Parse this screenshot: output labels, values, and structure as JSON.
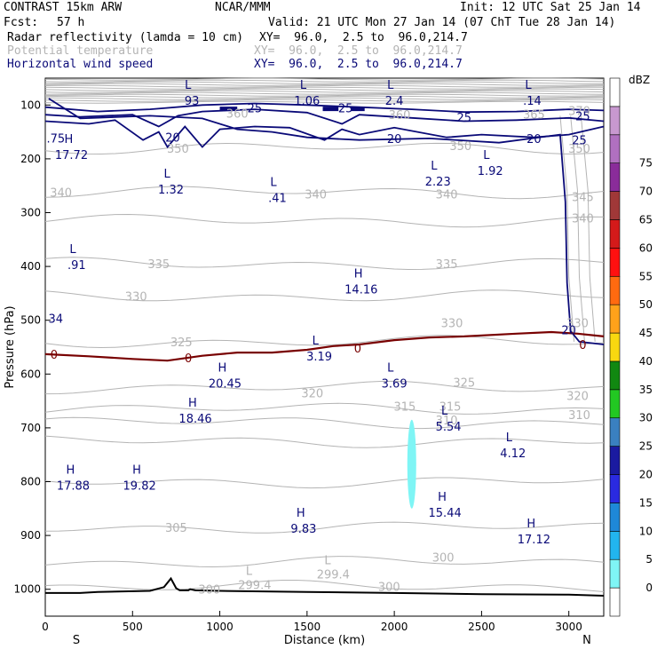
{
  "header": {
    "model": "CONTRAST 15km ARW",
    "org": "NCAR/MMM",
    "init": "Init: 12 UTC Sat 25 Jan 14",
    "fcst_label": "Fcst:",
    "fcst_value": "57 h",
    "valid": "Valid: 21 UTC Mon 27 Jan 14 (07 ChT Tue 28 Jan 14)",
    "fields": [
      {
        "name": "Radar reflectivity (lamda = 10 cm)",
        "xy": "XY=  96.0,  2.5 to  96.0,214.7"
      },
      {
        "name": "Potential temperature",
        "xy": "XY=  96.0,  2.5 to  96.0,214.7"
      },
      {
        "name": "Horizontal wind speed",
        "xy": "XY=  96.0,  2.5 to  96.0,214.7"
      }
    ]
  },
  "colors": {
    "wind": "#0a0a78",
    "theta": "#b4b4b4",
    "zero_line": "#780000",
    "terrain": "#000000",
    "refl_blob": "#7ff5f5"
  },
  "chart_data": {
    "type": "cross-section",
    "xlabel": "Distance (km)",
    "ylabel": "Pressure (hPa)",
    "xlim": [
      0,
      3200
    ],
    "ylim": [
      1050,
      50
    ],
    "x_ticks": [
      "0",
      "500",
      "1000",
      "1500",
      "2000",
      "2500",
      "3000"
    ],
    "y_ticks": [
      "100",
      "200",
      "300",
      "400",
      "500",
      "600",
      "700",
      "800",
      "900",
      "1000"
    ],
    "end_labels": {
      "left": "S",
      "right": "N"
    },
    "colorbar": {
      "unit": "dBZ",
      "levels": [
        "0",
        "5",
        "10",
        "15",
        "20",
        "25",
        "30",
        "35",
        "40",
        "45",
        "50",
        "55",
        "60",
        "65",
        "70",
        "75"
      ],
      "colors": [
        "#ffffff",
        "#7ff5f5",
        "#22b5ee",
        "#1e88d8",
        "#2a2ae0",
        "#1a1aa0",
        "#3a80c0",
        "#22c822",
        "#118811",
        "#f8d810",
        "#ffa21a",
        "#ff6a10",
        "#ff1010",
        "#d41a1a",
        "#a03838",
        "#8a2c9a",
        "#b070c0",
        "#c898d0",
        "#ffffff"
      ]
    },
    "theta_labels": [
      {
        "text": "350",
        "x": 760,
        "p": 180
      },
      {
        "text": "350",
        "x": 2380,
        "p": 175
      },
      {
        "text": "350",
        "x": 3060,
        "p": 180
      },
      {
        "text": "345",
        "x": 3080,
        "p": 270
      },
      {
        "text": "340",
        "x": 3080,
        "p": 310
      },
      {
        "text": "340",
        "x": 90,
        "p": 262
      },
      {
        "text": "340",
        "x": 1550,
        "p": 265
      },
      {
        "text": "340",
        "x": 2300,
        "p": 265
      },
      {
        "text": "335",
        "x": 650,
        "p": 395
      },
      {
        "text": "335",
        "x": 2300,
        "p": 395
      },
      {
        "text": "330",
        "x": 520,
        "p": 455
      },
      {
        "text": "330",
        "x": 2330,
        "p": 505
      },
      {
        "text": "330",
        "x": 3050,
        "p": 505
      },
      {
        "text": "325",
        "x": 780,
        "p": 540
      },
      {
        "text": "325",
        "x": 2400,
        "p": 615
      },
      {
        "text": "320",
        "x": 1530,
        "p": 635
      },
      {
        "text": "320",
        "x": 3050,
        "p": 640
      },
      {
        "text": "315",
        "x": 2060,
        "p": 660
      },
      {
        "text": "315",
        "x": 2320,
        "p": 660
      },
      {
        "text": "310",
        "x": 2300,
        "p": 685
      },
      {
        "text": "310",
        "x": 3060,
        "p": 675
      },
      {
        "text": "305",
        "x": 750,
        "p": 885
      },
      {
        "text": "300",
        "x": 2280,
        "p": 940
      },
      {
        "text": "300",
        "x": 1970,
        "p": 995
      },
      {
        "text": "300",
        "x": 940,
        "p": 1000
      },
      {
        "text": "360",
        "x": 2030,
        "p": 118
      },
      {
        "text": "360",
        "x": 1100,
        "p": 115
      },
      {
        "text": "365",
        "x": 2800,
        "p": 117
      },
      {
        "text": "370",
        "x": 3060,
        "p": 110
      }
    ],
    "theta_extrema": [
      {
        "kind": "L",
        "value": "299.4",
        "x": 1200,
        "p": 990
      },
      {
        "kind": "L",
        "value": "299.4",
        "x": 1650,
        "p": 970
      }
    ],
    "wind_labels": [
      {
        "text": "25",
        "x": 1200,
        "p": 105
      },
      {
        "text": "25",
        "x": 1720,
        "p": 105
      },
      {
        "text": "25",
        "x": 2400,
        "p": 123
      },
      {
        "text": "25",
        "x": 3080,
        "p": 120
      },
      {
        "text": "25",
        "x": 3060,
        "p": 165
      },
      {
        "text": "20",
        "x": 730,
        "p": 160
      },
      {
        "text": "20",
        "x": 2000,
        "p": 162
      },
      {
        "text": "20",
        "x": 2800,
        "p": 162
      },
      {
        "text": "20",
        "x": 3000,
        "p": 518
      },
      {
        "text": "0",
        "x": 1790,
        "p": 552
      },
      {
        "text": "0",
        "x": 820,
        "p": 570
      },
      {
        "text": "0",
        "x": 50,
        "p": 563
      },
      {
        "text": "0",
        "x": 3080,
        "p": 545
      }
    ],
    "wind_extrema": [
      {
        "kind": "L",
        "value": "93",
        "x": 840,
        "p": 90
      },
      {
        "kind": "L",
        "value": "1.06",
        "x": 1500,
        "p": 90
      },
      {
        "kind": "L",
        "value": "2.4",
        "x": 2000,
        "p": 90
      },
      {
        "kind": "L",
        "value": ".14",
        "x": 2790,
        "p": 90
      },
      {
        "kind": "",
        "value": ".75",
        "x": 60,
        "p": 160
      },
      {
        "kind": "H",
        "value": "17.72",
        "x": 150,
        "p": 190
      },
      {
        "kind": "L",
        "value": "1.32",
        "x": 720,
        "p": 255
      },
      {
        "kind": "L",
        "value": ".41",
        "x": 1330,
        "p": 270
      },
      {
        "kind": "L",
        "value": "2.23",
        "x": 2250,
        "p": 240
      },
      {
        "kind": "L",
        "value": "1.92",
        "x": 2550,
        "p": 220
      },
      {
        "kind": "L",
        "value": ".91",
        "x": 180,
        "p": 395
      },
      {
        "kind": "H",
        "value": "14.16",
        "x": 1810,
        "p": 440
      },
      {
        "kind": "",
        "value": "34",
        "x": 60,
        "p": 495
      },
      {
        "kind": "L",
        "value": "3.19",
        "x": 1570,
        "p": 565
      },
      {
        "kind": "H",
        "value": "20.45",
        "x": 1030,
        "p": 615
      },
      {
        "kind": "L",
        "value": "3.69",
        "x": 2000,
        "p": 615
      },
      {
        "kind": "H",
        "value": "18.46",
        "x": 860,
        "p": 680
      },
      {
        "kind": "L",
        "value": "5.54",
        "x": 2310,
        "p": 695
      },
      {
        "kind": "L",
        "value": "4.12",
        "x": 2680,
        "p": 745
      },
      {
        "kind": "H",
        "value": "17.88",
        "x": 160,
        "p": 805
      },
      {
        "kind": "H",
        "value": "19.82",
        "x": 540,
        "p": 805
      },
      {
        "kind": "H",
        "value": "15.44",
        "x": 2290,
        "p": 855
      },
      {
        "kind": "H",
        "value": "9.83",
        "x": 1480,
        "p": 885
      },
      {
        "kind": "H",
        "value": "17.12",
        "x": 2800,
        "p": 905
      }
    ],
    "zero_wind_line": [
      [
        0,
        563
      ],
      [
        250,
        567
      ],
      [
        500,
        572
      ],
      [
        700,
        575
      ],
      [
        900,
        566
      ],
      [
        1100,
        560
      ],
      [
        1300,
        560
      ],
      [
        1500,
        555
      ],
      [
        1650,
        548
      ],
      [
        1800,
        545
      ],
      [
        2000,
        537
      ],
      [
        2200,
        532
      ],
      [
        2400,
        530
      ],
      [
        2700,
        525
      ],
      [
        2900,
        522
      ],
      [
        3050,
        525
      ],
      [
        3200,
        530
      ]
    ],
    "terrain": [
      [
        0,
        1007
      ],
      [
        200,
        1007
      ],
      [
        300,
        1005
      ],
      [
        600,
        1003
      ],
      [
        680,
        996
      ],
      [
        720,
        980
      ],
      [
        750,
        998
      ],
      [
        770,
        1002
      ],
      [
        820,
        1002
      ],
      [
        830,
        1000
      ],
      [
        860,
        1002
      ],
      [
        1000,
        1003
      ],
      [
        1500,
        1005
      ],
      [
        2000,
        1007
      ],
      [
        2500,
        1009
      ],
      [
        3000,
        1010
      ],
      [
        3200,
        1012
      ]
    ],
    "reflectivity_blob": {
      "x_center": 2100,
      "p_top": 685,
      "p_bottom": 850,
      "dBZ": 5
    }
  }
}
